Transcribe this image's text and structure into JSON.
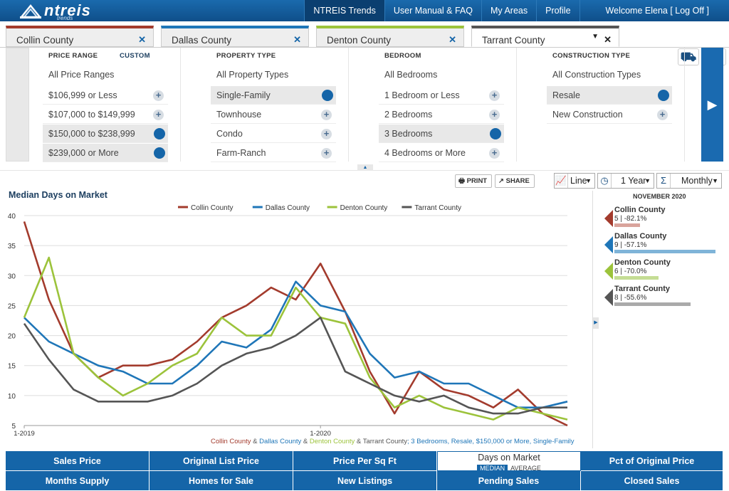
{
  "brand": {
    "name": "ntreis",
    "sub": "trends"
  },
  "topnav": {
    "items": [
      "NTREIS Trends",
      "User Manual & FAQ",
      "My Areas",
      "Profile"
    ],
    "welcome": "Welcome Elena [ Log Off ]"
  },
  "tabs": [
    {
      "label": "Collin County",
      "color": "#a33b2d"
    },
    {
      "label": "Dallas County",
      "color": "#1f76b8"
    },
    {
      "label": "Denton County",
      "color": "#9cc33b"
    },
    {
      "label": "Tarrant County",
      "color": "#555555"
    }
  ],
  "filters": {
    "price": {
      "header": "PRICE RANGE",
      "custom": "CUSTOM",
      "all": "All Price Ranges",
      "options": [
        "$106,999 or Less",
        "$107,000 to $149,999",
        "$150,000 to $238,999",
        "$239,000 or More"
      ],
      "selected": [
        false,
        false,
        true,
        true
      ]
    },
    "property": {
      "header": "PROPERTY TYPE",
      "all": "All Property Types",
      "options": [
        "Single-Family",
        "Townhouse",
        "Condo",
        "Farm-Ranch"
      ],
      "selected": [
        true,
        false,
        false,
        false
      ]
    },
    "bedroom": {
      "header": "BEDROOM",
      "all": "All Bedrooms",
      "options": [
        "1 Bedroom or Less",
        "2 Bedrooms",
        "3 Bedrooms",
        "4 Bedrooms or More"
      ],
      "selected": [
        false,
        false,
        true,
        false
      ]
    },
    "construction": {
      "header": "CONSTRUCTION TYPE",
      "all": "All Construction Types",
      "options": [
        "Resale",
        "New Construction"
      ],
      "selected": [
        true,
        false
      ]
    }
  },
  "toolbar": {
    "print": "PRINT",
    "share": "SHARE",
    "chart_type": "Line",
    "period": "1 Year",
    "interval": "Monthly"
  },
  "chart_title": "Median Days on Market",
  "chart_data": {
    "type": "line",
    "title": "Median Days on Market",
    "x": [
      "1-2019",
      "2-2019",
      "3-2019",
      "4-2019",
      "5-2019",
      "6-2019",
      "7-2019",
      "8-2019",
      "9-2019",
      "10-2019",
      "11-2019",
      "12-2019",
      "1-2020",
      "2-2020",
      "3-2020",
      "4-2020",
      "5-2020",
      "6-2020",
      "7-2020",
      "8-2020",
      "9-2020",
      "10-2020",
      "11-2020"
    ],
    "xticks": [
      "1-2019",
      "1-2020"
    ],
    "ylim": [
      5,
      40
    ],
    "yticks": [
      5,
      10,
      15,
      20,
      25,
      30,
      35,
      40
    ],
    "grid": true,
    "legend": "top",
    "series": [
      {
        "name": "Collin County",
        "color": "#a33b2d",
        "values": [
          39,
          26,
          17,
          13,
          15,
          15,
          16,
          19,
          23,
          25,
          28,
          26,
          32,
          24,
          14,
          7,
          14,
          11,
          10,
          8,
          11,
          7,
          5
        ]
      },
      {
        "name": "Dallas County",
        "color": "#1f76b8",
        "values": [
          23,
          19,
          17,
          15,
          14,
          12,
          12,
          15,
          19,
          18,
          21,
          29,
          25,
          24,
          17,
          13,
          14,
          12,
          12,
          10,
          8,
          8,
          9
        ]
      },
      {
        "name": "Denton County",
        "color": "#9cc33b",
        "values": [
          23,
          33,
          17,
          13,
          10,
          12,
          15,
          17,
          23,
          20,
          20,
          28,
          23,
          22,
          13,
          8,
          10,
          8,
          7,
          6,
          8,
          7,
          6
        ]
      },
      {
        "name": "Tarrant County",
        "color": "#555555",
        "values": [
          22,
          16,
          11,
          9,
          9,
          9,
          10,
          12,
          15,
          17,
          18,
          20,
          23,
          14,
          12,
          10,
          9,
          10,
          8,
          7,
          7,
          8,
          8
        ]
      }
    ]
  },
  "caption": {
    "parts": [
      "Collin County",
      " & ",
      "Dallas County",
      " & ",
      "Denton County",
      " & ",
      "Tarrant County",
      "; 3 Bedrooms, Resale, $150,000 or More, Single-Family"
    ]
  },
  "summary": {
    "date": "NOVEMBER 2020",
    "items": [
      {
        "name": "Collin County",
        "value": "5 | -82.1%",
        "color": "#a33b2d",
        "barcolor": "#d9a49c",
        "bar": 0.2
      },
      {
        "name": "Dallas County",
        "value": "9 | -57.1%",
        "color": "#1f76b8",
        "barcolor": "#7fb4d8",
        "bar": 0.8
      },
      {
        "name": "Denton County",
        "value": "6 | -70.0%",
        "color": "#9cc33b",
        "barcolor": "#c5dd95",
        "bar": 0.35
      },
      {
        "name": "Tarrant County",
        "value": "8 | -55.6%",
        "color": "#555555",
        "barcolor": "#aaaaaa",
        "bar": 0.6
      }
    ]
  },
  "bottom_nav": {
    "row1": [
      "Sales Price",
      "Original List Price",
      "Price Per Sq Ft",
      "Days on Market",
      "Pct of Original Price"
    ],
    "row2": [
      "Months Supply",
      "Homes for Sale",
      "New Listings",
      "Pending Sales",
      "Closed Sales"
    ],
    "active_median": "MEDIAN",
    "active_average": "AVERAGE"
  }
}
